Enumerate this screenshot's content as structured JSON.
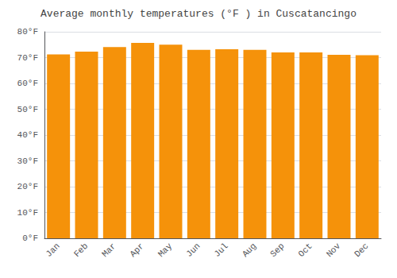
{
  "chart_data": {
    "type": "bar",
    "title": "Average monthly temperatures (°F ) in Cuscatancingo",
    "categories": [
      "Jan",
      "Feb",
      "Mar",
      "Apr",
      "May",
      "Jun",
      "Jul",
      "Aug",
      "Sep",
      "Oct",
      "Nov",
      "Dec"
    ],
    "values": [
      71.2,
      72.3,
      74.1,
      75.7,
      75.0,
      73.0,
      73.2,
      73.0,
      72.0,
      72.0,
      71.1,
      70.9
    ],
    "color": "#F5920A",
    "ylim": [
      0,
      80
    ],
    "yticks": [
      {
        "value": 0,
        "label": "0°F"
      },
      {
        "value": 10,
        "label": "10°F"
      },
      {
        "value": 20,
        "label": "20°F"
      },
      {
        "value": 30,
        "label": "30°F"
      },
      {
        "value": 40,
        "label": "40°F"
      },
      {
        "value": 50,
        "label": "50°F"
      },
      {
        "value": 60,
        "label": "60°F"
      },
      {
        "value": 70,
        "label": "70°F"
      },
      {
        "value": 80,
        "label": "80°F"
      }
    ],
    "grid": true
  }
}
